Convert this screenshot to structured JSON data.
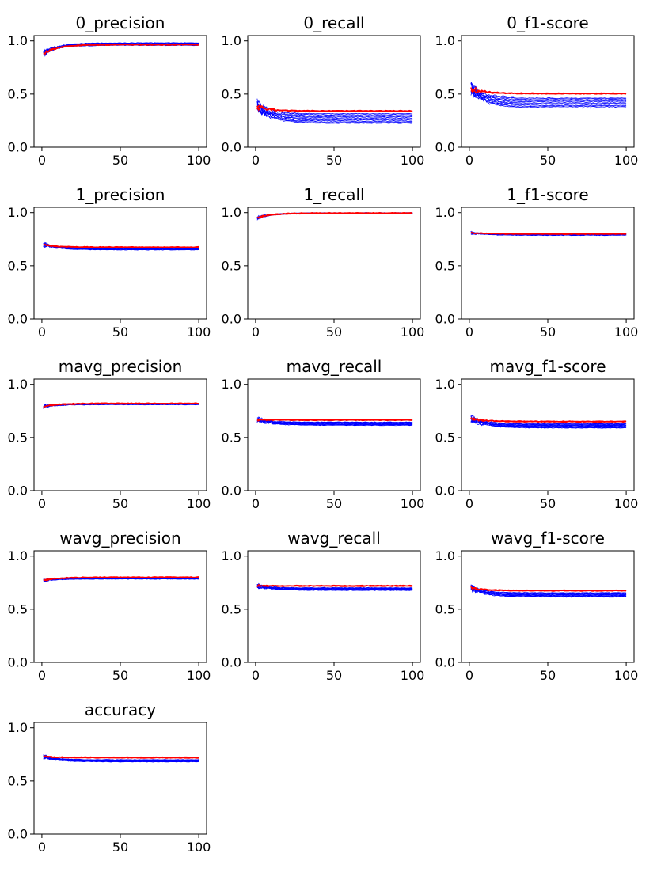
{
  "figure": {
    "x_range": [
      -5,
      105
    ],
    "y_range": [
      0,
      1.05
    ],
    "x_ticks": [
      0,
      50,
      100
    ],
    "y_ticks": [
      0.0,
      0.5,
      1.0
    ],
    "x_tick_labels": [
      "0",
      "50",
      "100"
    ],
    "y_tick_labels": [
      "0.0",
      "0.5",
      "1.0"
    ],
    "colors": {
      "runs": "#0000ff",
      "mean": "#ff0000",
      "axis": "#000000"
    },
    "runs_per_panel": 10,
    "n_points": 100
  },
  "chart_data": [
    {
      "type": "line",
      "title": "0_precision",
      "start": 0.88,
      "final": 0.97,
      "mean_final": 0.965,
      "spread": 0.012,
      "wobble": 0.07,
      "xlabel": "",
      "ylabel": "",
      "ylim": [
        0,
        1.05
      ]
    },
    {
      "type": "line",
      "title": "0_recall",
      "start": 0.38,
      "final": 0.27,
      "mean_final": 0.34,
      "spread": 0.045,
      "wobble": 0.16,
      "xlabel": "",
      "ylabel": "",
      "ylim": [
        0,
        1.05
      ]
    },
    {
      "type": "line",
      "title": "0_f1-score",
      "start": 0.55,
      "final": 0.42,
      "mean_final": 0.505,
      "spread": 0.05,
      "wobble": 0.15,
      "xlabel": "",
      "ylabel": "",
      "ylim": [
        0,
        1.05
      ]
    },
    {
      "type": "line",
      "title": "1_precision",
      "start": 0.7,
      "final": 0.66,
      "mean_final": 0.675,
      "spread": 0.01,
      "wobble": 0.05,
      "xlabel": "",
      "ylabel": "",
      "ylim": [
        0,
        1.05
      ]
    },
    {
      "type": "line",
      "title": "1_recall",
      "start": 0.95,
      "final": 0.995,
      "mean_final": 0.995,
      "spread": 0.003,
      "wobble": 0.04,
      "xlabel": "",
      "ylabel": "",
      "ylim": [
        0,
        1.05
      ]
    },
    {
      "type": "line",
      "title": "1_f1-score",
      "start": 0.81,
      "final": 0.795,
      "mean_final": 0.8,
      "spread": 0.008,
      "wobble": 0.03,
      "xlabel": "",
      "ylabel": "",
      "ylim": [
        0,
        1.05
      ]
    },
    {
      "type": "line",
      "title": "mavg_precision",
      "start": 0.79,
      "final": 0.815,
      "mean_final": 0.82,
      "spread": 0.006,
      "wobble": 0.04,
      "xlabel": "",
      "ylabel": "",
      "ylim": [
        0,
        1.05
      ]
    },
    {
      "type": "line",
      "title": "mavg_recall",
      "start": 0.67,
      "final": 0.63,
      "mean_final": 0.665,
      "spread": 0.015,
      "wobble": 0.07,
      "xlabel": "",
      "ylabel": "",
      "ylim": [
        0,
        1.05
      ]
    },
    {
      "type": "line",
      "title": "mavg_f1-score",
      "start": 0.68,
      "final": 0.61,
      "mean_final": 0.65,
      "spread": 0.02,
      "wobble": 0.09,
      "xlabel": "",
      "ylabel": "",
      "ylim": [
        0,
        1.05
      ]
    },
    {
      "type": "line",
      "title": "wavg_precision",
      "start": 0.77,
      "final": 0.79,
      "mean_final": 0.8,
      "spread": 0.006,
      "wobble": 0.035,
      "xlabel": "",
      "ylabel": "",
      "ylim": [
        0,
        1.05
      ]
    },
    {
      "type": "line",
      "title": "wavg_recall",
      "start": 0.72,
      "final": 0.69,
      "mean_final": 0.72,
      "spread": 0.012,
      "wobble": 0.05,
      "xlabel": "",
      "ylabel": "",
      "ylim": [
        0,
        1.05
      ]
    },
    {
      "type": "line",
      "title": "wavg_f1-score",
      "start": 0.7,
      "final": 0.635,
      "mean_final": 0.675,
      "spread": 0.02,
      "wobble": 0.08,
      "xlabel": "",
      "ylabel": "",
      "ylim": [
        0,
        1.05
      ]
    },
    {
      "type": "line",
      "title": "accuracy",
      "start": 0.73,
      "final": 0.69,
      "mean_final": 0.72,
      "spread": 0.01,
      "wobble": 0.05,
      "xlabel": "",
      "ylabel": "",
      "ylim": [
        0,
        1.05
      ]
    }
  ]
}
